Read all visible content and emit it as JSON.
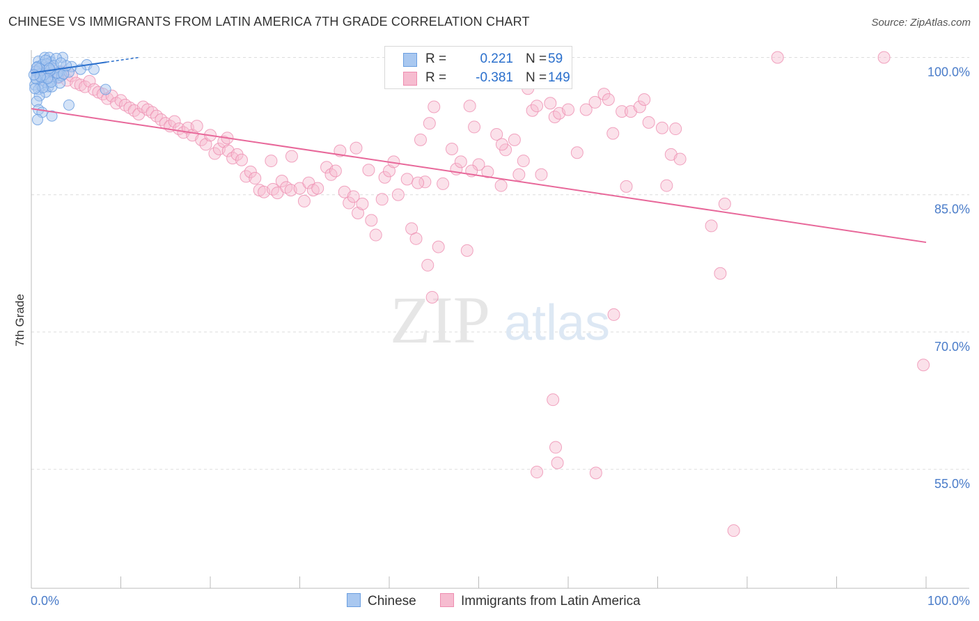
{
  "title": "CHINESE VS IMMIGRANTS FROM LATIN AMERICA 7TH GRADE CORRELATION CHART",
  "source": "Source: ZipAtlas.com",
  "watermark": {
    "zip": "ZIP",
    "atlas": "atlas"
  },
  "colors": {
    "chinese_fill": "#a9c8f0",
    "chinese_stroke": "#6a9ee0",
    "chinese_line": "#2a6fcc",
    "latam_fill": "#f6bcd0",
    "latam_stroke": "#ee8db0",
    "latam_line": "#e8689a",
    "axis_label": "#4a7cc9",
    "grid": "#dcdcdc"
  },
  "legend": {
    "r_label": "R =",
    "n_label": "N =",
    "chinese": {
      "r": "0.221",
      "n": "59"
    },
    "latam": {
      "r": "-0.381",
      "n": "149"
    }
  },
  "chart_data": {
    "type": "scatter",
    "ylabel": "7th Grade",
    "xlim": [
      0,
      100
    ],
    "ylim": [
      42,
      100.8
    ],
    "x_tick_labels": [
      "0.0%",
      "100.0%"
    ],
    "y_ticks": [
      55,
      70,
      85,
      100
    ],
    "y_tick_labels": [
      "55.0%",
      "70.0%",
      "85.0%",
      "100.0%"
    ],
    "series": [
      {
        "name": "Chinese",
        "trend": {
          "x0": 0,
          "y0": 98.3,
          "x1": 12,
          "y1": 100
        },
        "points": [
          [
            0.8,
            99.6
          ],
          [
            1.5,
            100
          ],
          [
            2,
            100
          ],
          [
            2.2,
            99.5
          ],
          [
            3.5,
            100
          ],
          [
            1.2,
            99.2
          ],
          [
            0.7,
            99
          ],
          [
            1.8,
            98.9
          ],
          [
            2.5,
            98.8
          ],
          [
            3.2,
            98.5
          ],
          [
            4.5,
            99
          ],
          [
            6.2,
            99.2
          ],
          [
            7,
            98.7
          ],
          [
            0.5,
            98.5
          ],
          [
            1,
            98.2
          ],
          [
            1.4,
            98
          ],
          [
            2.6,
            97.9
          ],
          [
            0.6,
            97.6
          ],
          [
            1.3,
            97.5
          ],
          [
            2,
            97.4
          ],
          [
            3,
            97.8
          ],
          [
            0.4,
            97
          ],
          [
            1.1,
            96.9
          ],
          [
            1.9,
            96.8
          ],
          [
            0.8,
            96.5
          ],
          [
            1.6,
            96.2
          ],
          [
            2.3,
            96.8
          ],
          [
            3.4,
            98
          ],
          [
            4.2,
            98.4
          ],
          [
            0.9,
            95.8
          ],
          [
            0.6,
            95.2
          ],
          [
            0.8,
            94.3
          ],
          [
            1.2,
            94
          ],
          [
            2.3,
            93.6
          ],
          [
            0.7,
            93.2
          ],
          [
            4.2,
            94.8
          ],
          [
            8.3,
            96.5
          ],
          [
            5.5,
            98.7
          ],
          [
            1.4,
            98.1
          ],
          [
            0.5,
            97.7
          ],
          [
            3.2,
            97.2
          ],
          [
            2.9,
            98.3
          ],
          [
            1.7,
            99.3
          ],
          [
            2.8,
            99.9
          ],
          [
            1.6,
            99.7
          ],
          [
            0.9,
            98.8
          ],
          [
            2.1,
            98.6
          ],
          [
            0.6,
            98.9
          ],
          [
            1.3,
            96.7
          ],
          [
            2.2,
            97.3
          ],
          [
            3.6,
            98.2
          ],
          [
            0.4,
            96.6
          ],
          [
            1.8,
            97.7
          ],
          [
            2.5,
            99.1
          ],
          [
            3.9,
            99.1
          ],
          [
            1,
            97.9
          ],
          [
            0.3,
            98.1
          ],
          [
            2,
            98.8
          ],
          [
            3.3,
            99.4
          ]
        ]
      },
      {
        "name": "Immigrants from Latin America",
        "trend": {
          "x0": 0,
          "y0": 94.4,
          "x1": 100,
          "y1": 79.8
        },
        "points": [
          [
            0.6,
            98.5
          ],
          [
            1,
            98
          ],
          [
            1.5,
            97.6
          ],
          [
            2,
            99
          ],
          [
            2.5,
            98.2
          ],
          [
            3,
            97.8
          ],
          [
            3.5,
            98.4
          ],
          [
            4,
            97.5
          ],
          [
            4.5,
            98
          ],
          [
            5,
            97.2
          ],
          [
            5.5,
            97
          ],
          [
            6,
            96.8
          ],
          [
            6.5,
            97.4
          ],
          [
            7,
            96.5
          ],
          [
            7.5,
            96.2
          ],
          [
            8,
            96
          ],
          [
            8.5,
            95.5
          ],
          [
            9,
            95.8
          ],
          [
            9.5,
            95
          ],
          [
            10,
            95.3
          ],
          [
            10.5,
            94.8
          ],
          [
            11,
            94.5
          ],
          [
            11.5,
            94.2
          ],
          [
            12,
            93.8
          ],
          [
            12.5,
            94.6
          ],
          [
            13,
            94.3
          ],
          [
            13.5,
            94
          ],
          [
            14,
            93.6
          ],
          [
            14.5,
            93.2
          ],
          [
            15,
            92.8
          ],
          [
            15.5,
            92.5
          ],
          [
            16,
            93
          ],
          [
            16.5,
            92.2
          ],
          [
            17,
            91.8
          ],
          [
            17.5,
            92.3
          ],
          [
            18,
            91.5
          ],
          [
            18.5,
            92.5
          ],
          [
            19,
            91
          ],
          [
            19.5,
            90.5
          ],
          [
            20,
            91.5
          ],
          [
            20.5,
            89.5
          ],
          [
            21,
            90
          ],
          [
            21.5,
            90.8
          ],
          [
            22,
            89.8
          ],
          [
            22.5,
            89
          ],
          [
            23,
            89.4
          ],
          [
            23.5,
            88.8
          ],
          [
            24,
            87
          ],
          [
            24.5,
            87.5
          ],
          [
            25,
            86.8
          ],
          [
            25.5,
            85.5
          ],
          [
            26,
            85.3
          ],
          [
            27,
            85.6
          ],
          [
            27.5,
            85.2
          ],
          [
            28,
            86.5
          ],
          [
            28.5,
            85.8
          ],
          [
            29,
            85.5
          ],
          [
            30,
            85.7
          ],
          [
            30.5,
            84.3
          ],
          [
            31,
            86.3
          ],
          [
            31.5,
            85.5
          ],
          [
            32,
            85.7
          ],
          [
            33,
            88
          ],
          [
            33.5,
            87.2
          ],
          [
            34,
            87.6
          ],
          [
            35,
            85.3
          ],
          [
            35.5,
            84.1
          ],
          [
            36,
            84.8
          ],
          [
            36.5,
            83
          ],
          [
            37,
            84
          ],
          [
            38,
            82.2
          ],
          [
            38.5,
            80.6
          ],
          [
            39.5,
            86.9
          ],
          [
            40,
            87.6
          ],
          [
            40.5,
            88.6
          ],
          [
            41,
            85
          ],
          [
            42,
            86.7
          ],
          [
            42.5,
            81.3
          ],
          [
            43,
            80.2
          ],
          [
            43.5,
            91
          ],
          [
            44,
            86.4
          ],
          [
            44.5,
            92.8
          ],
          [
            45,
            94.6
          ],
          [
            46,
            86.2
          ],
          [
            47,
            90
          ],
          [
            47.5,
            87.8
          ],
          [
            48,
            88.6
          ],
          [
            49,
            94.7
          ],
          [
            49.5,
            92.4
          ],
          [
            50,
            88.3
          ],
          [
            51,
            87.5
          ],
          [
            52,
            91.6
          ],
          [
            52.5,
            86
          ],
          [
            53,
            89.9
          ],
          [
            54,
            91
          ],
          [
            54.5,
            87.2
          ],
          [
            55,
            88.7
          ],
          [
            55.5,
            96.6
          ],
          [
            56,
            94.2
          ],
          [
            56.5,
            94.7
          ],
          [
            57,
            87.2
          ],
          [
            58,
            95
          ],
          [
            58.5,
            93.5
          ],
          [
            59,
            93.9
          ],
          [
            60,
            94.3
          ],
          [
            61,
            89.6
          ],
          [
            62,
            94.3
          ],
          [
            63,
            95.1
          ],
          [
            64,
            96
          ],
          [
            64.5,
            95.4
          ],
          [
            65,
            91.7
          ],
          [
            66,
            94.1
          ],
          [
            66.5,
            85.9
          ],
          [
            67,
            94.1
          ],
          [
            68,
            94.6
          ],
          [
            68.5,
            95.4
          ],
          [
            69,
            92.9
          ],
          [
            70.5,
            92.3
          ],
          [
            71,
            86
          ],
          [
            71.5,
            89.4
          ],
          [
            72,
            92.2
          ],
          [
            72.5,
            88.9
          ],
          [
            76,
            81.6
          ],
          [
            77,
            76.4
          ],
          [
            77.5,
            84
          ],
          [
            78.5,
            48.3
          ],
          [
            83.4,
            100
          ],
          [
            95.3,
            100
          ],
          [
            99.7,
            66.4
          ],
          [
            58.3,
            62.6
          ],
          [
            58.6,
            57.4
          ],
          [
            58.8,
            55.7
          ],
          [
            56.5,
            54.7
          ],
          [
            63.1,
            54.6
          ],
          [
            65.1,
            71.9
          ],
          [
            44.8,
            73.8
          ],
          [
            45.5,
            79.3
          ],
          [
            44.3,
            77.3
          ],
          [
            39.2,
            84.5
          ],
          [
            43.2,
            86.3
          ],
          [
            37.7,
            87.7
          ],
          [
            52.6,
            90.5
          ],
          [
            36.3,
            90.1
          ],
          [
            48.7,
            78.9
          ],
          [
            29.1,
            89.2
          ],
          [
            34.5,
            89.8
          ],
          [
            21.9,
            91.2
          ],
          [
            26.8,
            88.7
          ],
          [
            49.2,
            87.6
          ]
        ]
      }
    ]
  }
}
